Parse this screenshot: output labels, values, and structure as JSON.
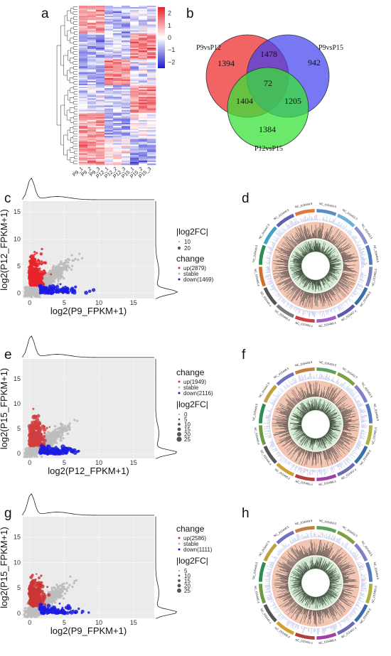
{
  "panel_labels": [
    "a",
    "b",
    "c",
    "d",
    "e",
    "f",
    "g",
    "h"
  ],
  "colors": {
    "up": "#e8232a",
    "down": "#1b1be0",
    "stable": "#bdbdbd",
    "venn_red": "#f04848",
    "venn_blue": "#3f3ff0",
    "venn_green": "#38e238",
    "heat_hi": "#e8202a",
    "heat_lo": "#1c1cd0",
    "grid_bg": "#ebebeb"
  },
  "chart_data": [
    {
      "id": "a",
      "type": "heatmap",
      "columns": [
        "P9_1",
        "P9_2",
        "P9_3",
        "P12_1",
        "P12_2",
        "P12_3",
        "P15_1",
        "P15_2",
        "P15_3"
      ],
      "colorbar_ticks": [
        "2",
        "1",
        "0",
        "−1",
        "−2"
      ],
      "colorbar_range": [
        -2.5,
        2.5
      ]
    },
    {
      "id": "b",
      "type": "venn",
      "sets": [
        "P9vsP12",
        "P9vsP15",
        "P12vsP15"
      ],
      "regions": {
        "only_A": "1394",
        "AB": "1478",
        "only_B": "942",
        "ABC": "72",
        "AC": "1404",
        "BC": "1205",
        "only_C": "1384"
      }
    },
    {
      "id": "c",
      "type": "scatter",
      "xlabel": "log2(P9_FPKM+1)",
      "ylabel": "log2(P12_FPKM+1)",
      "xlim": [
        -1,
        18
      ],
      "ylim": [
        -1,
        17
      ],
      "x_ticks": [
        "0",
        "5",
        "10",
        "15"
      ],
      "y_ticks": [
        "0",
        "5",
        "10",
        "15"
      ],
      "legend_order": [
        "size",
        "change"
      ],
      "size_title": "|log2FC|",
      "size_items": [
        "10",
        "20"
      ],
      "change_title": "change",
      "series": [
        {
          "name": "up(2879)"
        },
        {
          "name": "stable"
        },
        {
          "name": "down(1469)"
        }
      ]
    },
    {
      "id": "d",
      "type": "other",
      "chromosomes": [
        "NC_015450.5",
        "NC_015452.5",
        "NC_015453.5",
        "NC_015454.5",
        "NC_015455.5",
        "NC_015456.5",
        "NC_015457.4",
        "NC_015458.4",
        "NC_015459.4",
        "NC_015460.4",
        "NC_015444.4",
        "NC_015445.4",
        "NC_015446.5",
        "NC_015447.5",
        "NC_015448.5",
        "NC_015449.5"
      ]
    },
    {
      "id": "e",
      "type": "scatter",
      "xlabel": "log2(P12_FPKM+1)",
      "ylabel": "log2(P15_FPKM+1)",
      "xlim": [
        -1,
        18
      ],
      "ylim": [
        -1,
        19
      ],
      "x_ticks": [
        "0",
        "5",
        "10",
        "15"
      ],
      "y_ticks": [
        "0",
        "5",
        "10",
        "15"
      ],
      "legend_order": [
        "change",
        "size"
      ],
      "change_title": "change",
      "series": [
        {
          "name": "up(1949)"
        },
        {
          "name": "stable"
        },
        {
          "name": "down(2116)"
        }
      ],
      "size_title": "|log2FC|",
      "size_items": [
        "0",
        "5",
        "10",
        "15",
        "20",
        "25"
      ]
    },
    {
      "id": "f",
      "type": "other",
      "chromosomes": [
        "NC_015450.5",
        "NC_015452.5",
        "NC_015453.5",
        "NC_015454.5",
        "NC_015455.5",
        "NC_015456.5",
        "NC_015457.4",
        "NC_015458.4",
        "NC_015459.4",
        "NC_015460.4",
        "NC_015444.4",
        "NC_015445.4",
        "NC_015446.5",
        "NC_015447.5",
        "NC_015448.5",
        "NC_015449.5"
      ]
    },
    {
      "id": "g",
      "type": "scatter",
      "xlabel": "log2(P9_FPKM+1)",
      "ylabel": "log2(P15_FPKM+1)",
      "xlim": [
        -1,
        18
      ],
      "ylim": [
        -1,
        19
      ],
      "x_ticks": [
        "0",
        "5",
        "10",
        "15"
      ],
      "y_ticks": [
        "0",
        "5",
        "10",
        "15"
      ],
      "legend_order": [
        "change",
        "size"
      ],
      "change_title": "change",
      "series": [
        {
          "name": "up(2586)"
        },
        {
          "name": "stable"
        },
        {
          "name": "down(1111)"
        }
      ],
      "size_title": "|log2FC|",
      "size_items": [
        "5",
        "10",
        "15",
        "20",
        "25"
      ]
    },
    {
      "id": "h",
      "type": "other",
      "chromosomes": [
        "NC_015450.5",
        "NC_015452.5",
        "NC_015453.5",
        "NC_015454.5",
        "NC_015455.5",
        "NC_015456.5",
        "NC_015457.4",
        "NC_015458.4",
        "NC_015459.4",
        "NC_015460.4",
        "NC_015444.4",
        "NC_015445.4",
        "NC_015446.5",
        "NC_015447.5",
        "NC_015448.5",
        "NC_015449.5"
      ]
    }
  ]
}
